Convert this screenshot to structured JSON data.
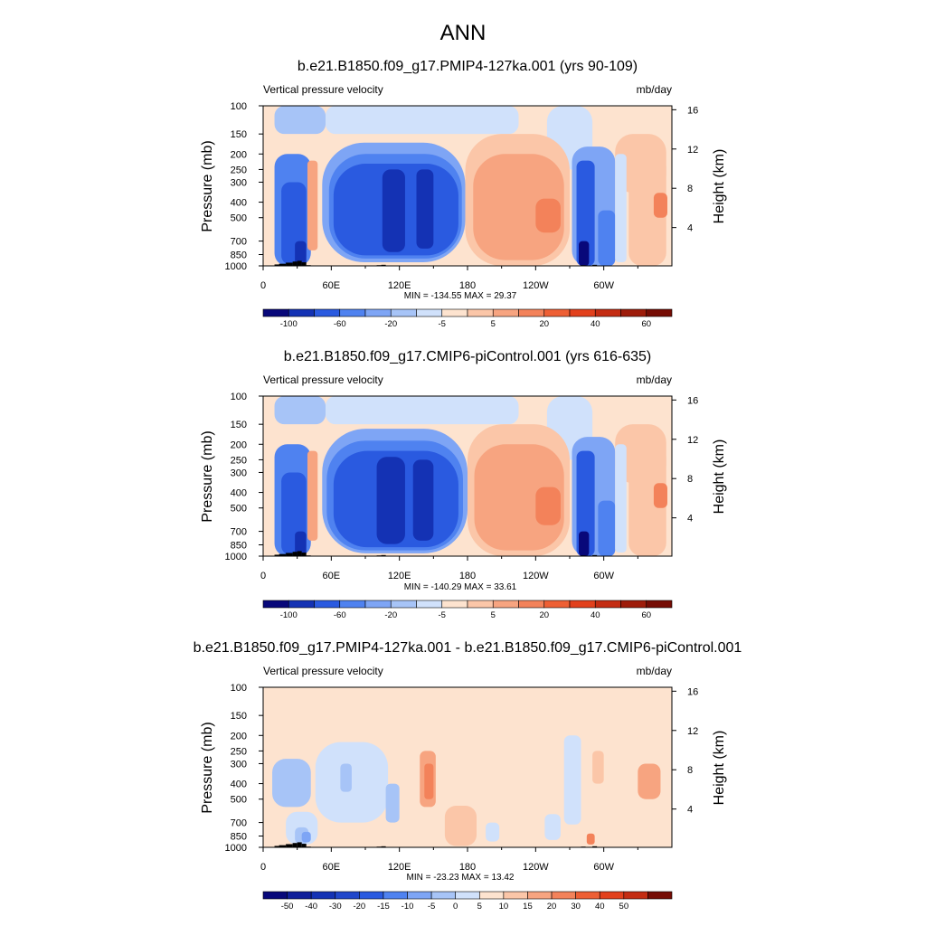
{
  "title": "ANN",
  "chart_data": [
    {
      "type": "heatmap",
      "title": "b.e21.B1850.f09_g17.PMIP4-127ka.001 (yrs 90-109)",
      "left_string": "Vertical pressure velocity",
      "right_string": "mb/day",
      "ylabel": "Pressure (mb)",
      "ylabel_right": "Height (km)",
      "x_ticks": [
        "0",
        "60E",
        "120E",
        "180",
        "120W",
        "60W"
      ],
      "y_ticks": [
        "100",
        "150",
        "200",
        "250",
        "300",
        "400",
        "500",
        "700",
        "850",
        "1000"
      ],
      "y_ticks_right": [
        "4",
        "8",
        "12",
        "16"
      ],
      "xlim": [
        0,
        360
      ],
      "ylim": [
        1000,
        100
      ],
      "stats": "MIN = -134.55  MAX =  29.37",
      "colorbar_labels": [
        "-100",
        "-60",
        "-20",
        "-5",
        "5",
        "20",
        "40",
        "60"
      ],
      "colorbar_colors": [
        "#08087a",
        "#1432b4",
        "#2a5ae0",
        "#4f82f0",
        "#7ea5f5",
        "#a7c4f7",
        "#d0e1fb",
        "#fde3cf",
        "#fbc6a8",
        "#f7a480",
        "#f3825a",
        "#ee5f34",
        "#e2401c",
        "#c42c12",
        "#9e1c0a",
        "#760c04"
      ],
      "fields": {
        "base": "#fde3cf",
        "features": [
          {
            "lon": [
              10,
              55
            ],
            "p": [
              100,
              150
            ],
            "c": 5
          },
          {
            "lon": [
              55,
              225
            ],
            "p": [
              100,
              150
            ],
            "c": 6
          },
          {
            "lon": [
              225,
              250
            ],
            "p": [
              100,
              200
            ],
            "c": 7
          },
          {
            "lon": [
              250,
              290
            ],
            "p": [
              100,
              250
            ],
            "c": 6
          },
          {
            "lon": [
              310,
              355
            ],
            "p": [
              150,
              350
            ],
            "c": 8
          },
          {
            "lon": [
              10,
              42
            ],
            "p": [
              200,
              1000
            ],
            "c": 3
          },
          {
            "lon": [
              16,
              38
            ],
            "p": [
              300,
              980
            ],
            "c": 2
          },
          {
            "lon": [
              28,
              38
            ],
            "p": [
              700,
              1000
            ],
            "c": 1
          },
          {
            "lon": [
              39,
              48
            ],
            "p": [
              220,
              800
            ],
            "c": 9
          },
          {
            "lon": [
              52,
              178
            ],
            "p": [
              170,
              950
            ],
            "c": 4
          },
          {
            "lon": [
              58,
              175
            ],
            "p": [
              200,
              900
            ],
            "c": 3
          },
          {
            "lon": [
              62,
              172
            ],
            "p": [
              230,
              860
            ],
            "c": 2
          },
          {
            "lon": [
              105,
              125
            ],
            "p": [
              250,
              820
            ],
            "c": 1
          },
          {
            "lon": [
              135,
              150
            ],
            "p": [
              250,
              780
            ],
            "c": 1
          },
          {
            "lon": [
              178,
              270
            ],
            "p": [
              150,
              1000
            ],
            "c": 8
          },
          {
            "lon": [
              185,
              265
            ],
            "p": [
              200,
              920
            ],
            "c": 9
          },
          {
            "lon": [
              240,
              262
            ],
            "p": [
              380,
              620
            ],
            "c": 10
          },
          {
            "lon": [
              272,
              310
            ],
            "p": [
              180,
              1000
            ],
            "c": 4
          },
          {
            "lon": [
              276,
              292
            ],
            "p": [
              220,
              1000
            ],
            "c": 2
          },
          {
            "lon": [
              278,
              287
            ],
            "p": [
              700,
              1000
            ],
            "c": 0
          },
          {
            "lon": [
              295,
              310
            ],
            "p": [
              450,
              1000
            ],
            "c": 3
          },
          {
            "lon": [
              310,
              320
            ],
            "p": [
              200,
              950
            ],
            "c": 6
          },
          {
            "lon": [
              322,
              355
            ],
            "p": [
              200,
              1000
            ],
            "c": 8
          },
          {
            "lon": [
              344,
              356
            ],
            "p": [
              350,
              500
            ],
            "c": 10
          }
        ],
        "topo": [
          [
            10,
            980
          ],
          [
            14,
            970
          ],
          [
            20,
            955
          ],
          [
            26,
            940
          ],
          [
            30,
            930
          ],
          [
            34,
            950
          ],
          [
            38,
            990
          ],
          [
            100,
            990
          ],
          [
            104,
            985
          ],
          [
            280,
            990
          ],
          [
            290,
            985
          ],
          [
            300,
            995
          ]
        ]
      }
    },
    {
      "type": "heatmap",
      "title": "b.e21.B1850.f09_g17.CMIP6-piControl.001 (yrs 616-635)",
      "left_string": "Vertical pressure velocity",
      "right_string": "mb/day",
      "ylabel": "Pressure (mb)",
      "ylabel_right": "Height (km)",
      "x_ticks": [
        "0",
        "60E",
        "120E",
        "180",
        "120W",
        "60W"
      ],
      "y_ticks": [
        "100",
        "150",
        "200",
        "250",
        "300",
        "400",
        "500",
        "700",
        "850",
        "1000"
      ],
      "y_ticks_right": [
        "4",
        "8",
        "12",
        "16"
      ],
      "xlim": [
        0,
        360
      ],
      "ylim": [
        1000,
        100
      ],
      "stats": "MIN = -140.29  MAX =  33.61",
      "colorbar_labels": [
        "-100",
        "-60",
        "-20",
        "-5",
        "5",
        "20",
        "40",
        "60"
      ],
      "colorbar_colors": [
        "#08087a",
        "#1432b4",
        "#2a5ae0",
        "#4f82f0",
        "#7ea5f5",
        "#a7c4f7",
        "#d0e1fb",
        "#fde3cf",
        "#fbc6a8",
        "#f7a480",
        "#f3825a",
        "#ee5f34",
        "#e2401c",
        "#c42c12",
        "#9e1c0a",
        "#760c04"
      ],
      "fields": {
        "base": "#fde3cf",
        "features": [
          {
            "lon": [
              10,
              55
            ],
            "p": [
              100,
              150
            ],
            "c": 5
          },
          {
            "lon": [
              55,
              225
            ],
            "p": [
              100,
              150
            ],
            "c": 6
          },
          {
            "lon": [
              225,
              250
            ],
            "p": [
              100,
              200
            ],
            "c": 7
          },
          {
            "lon": [
              250,
              290
            ],
            "p": [
              100,
              250
            ],
            "c": 6
          },
          {
            "lon": [
              310,
              355
            ],
            "p": [
              150,
              350
            ],
            "c": 8
          },
          {
            "lon": [
              10,
              42
            ],
            "p": [
              200,
              1000
            ],
            "c": 3
          },
          {
            "lon": [
              16,
              38
            ],
            "p": [
              300,
              980
            ],
            "c": 2
          },
          {
            "lon": [
              28,
              38
            ],
            "p": [
              700,
              1000
            ],
            "c": 1
          },
          {
            "lon": [
              39,
              48
            ],
            "p": [
              220,
              800
            ],
            "c": 9
          },
          {
            "lon": [
              52,
              180
            ],
            "p": [
              160,
              960
            ],
            "c": 4
          },
          {
            "lon": [
              56,
              176
            ],
            "p": [
              190,
              920
            ],
            "c": 3
          },
          {
            "lon": [
              62,
              172
            ],
            "p": [
              220,
              880
            ],
            "c": 2
          },
          {
            "lon": [
              100,
              125
            ],
            "p": [
              240,
              840
            ],
            "c": 1
          },
          {
            "lon": [
              132,
              150
            ],
            "p": [
              250,
              800
            ],
            "c": 1
          },
          {
            "lon": [
              180,
              270
            ],
            "p": [
              150,
              1000
            ],
            "c": 8
          },
          {
            "lon": [
              186,
              265
            ],
            "p": [
              200,
              920
            ],
            "c": 9
          },
          {
            "lon": [
              240,
              262
            ],
            "p": [
              370,
              640
            ],
            "c": 10
          },
          {
            "lon": [
              272,
              310
            ],
            "p": [
              180,
              1000
            ],
            "c": 4
          },
          {
            "lon": [
              276,
              292
            ],
            "p": [
              220,
              1000
            ],
            "c": 2
          },
          {
            "lon": [
              278,
              287
            ],
            "p": [
              700,
              1000
            ],
            "c": 0
          },
          {
            "lon": [
              295,
              310
            ],
            "p": [
              450,
              1000
            ],
            "c": 3
          },
          {
            "lon": [
              310,
              320
            ],
            "p": [
              200,
              950
            ],
            "c": 6
          },
          {
            "lon": [
              322,
              355
            ],
            "p": [
              200,
              1000
            ],
            "c": 8
          },
          {
            "lon": [
              344,
              356
            ],
            "p": [
              350,
              500
            ],
            "c": 10
          }
        ],
        "topo": [
          [
            10,
            980
          ],
          [
            14,
            970
          ],
          [
            20,
            955
          ],
          [
            26,
            940
          ],
          [
            30,
            930
          ],
          [
            34,
            950
          ],
          [
            38,
            990
          ],
          [
            100,
            990
          ],
          [
            104,
            985
          ],
          [
            280,
            990
          ],
          [
            290,
            985
          ],
          [
            300,
            995
          ]
        ]
      }
    },
    {
      "type": "heatmap",
      "title": "b.e21.B1850.f09_g17.PMIP4-127ka.001 - b.e21.B1850.f09_g17.CMIP6-piControl.001",
      "left_string": "Vertical pressure velocity",
      "right_string": "mb/day",
      "ylabel": "Pressure (mb)",
      "ylabel_right": "Height (km)",
      "x_ticks": [
        "0",
        "60E",
        "120E",
        "180",
        "120W",
        "60W"
      ],
      "y_ticks": [
        "100",
        "150",
        "200",
        "250",
        "300",
        "400",
        "500",
        "700",
        "850",
        "1000"
      ],
      "y_ticks_right": [
        "4",
        "8",
        "12",
        "16"
      ],
      "xlim": [
        0,
        360
      ],
      "ylim": [
        1000,
        100
      ],
      "stats": "MIN = -23.23  MAX =  13.42",
      "colorbar_labels": [
        "-50",
        "-40",
        "-30",
        "-20",
        "-15",
        "-10",
        "-5",
        "0",
        "5",
        "10",
        "15",
        "20",
        "30",
        "40",
        "50"
      ],
      "colorbar_colors": [
        "#08087a",
        "#0f1e9a",
        "#1432b4",
        "#2046ca",
        "#2a5ae0",
        "#4f82f0",
        "#7ea5f5",
        "#a7c4f7",
        "#d0e1fb",
        "#fde3cf",
        "#fbc6a8",
        "#f7a480",
        "#f3825a",
        "#ee5f34",
        "#e2401c",
        "#c42c12",
        "#760c04"
      ],
      "fields": {
        "base": "#fde3cf",
        "features": [
          {
            "lon": [
              8,
              42
            ],
            "p": [
              280,
              560
            ],
            "c": 7
          },
          {
            "lon": [
              20,
              48
            ],
            "p": [
              600,
              960
            ],
            "c": 8
          },
          {
            "lon": [
              28,
              40
            ],
            "p": [
              750,
              950
            ],
            "c": 7
          },
          {
            "lon": [
              34,
              42
            ],
            "p": [
              800,
              930
            ],
            "c": 6
          },
          {
            "lon": [
              46,
              110
            ],
            "p": [
              220,
              700
            ],
            "c": 8
          },
          {
            "lon": [
              68,
              78
            ],
            "p": [
              300,
              450
            ],
            "c": 7
          },
          {
            "lon": [
              108,
              120
            ],
            "p": [
              400,
              700
            ],
            "c": 7
          },
          {
            "lon": [
              138,
              152
            ],
            "p": [
              250,
              560
            ],
            "c": 11
          },
          {
            "lon": [
              142,
              150
            ],
            "p": [
              300,
              500
            ],
            "c": 12
          },
          {
            "lon": [
              160,
              188
            ],
            "p": [
              550,
              980
            ],
            "c": 10
          },
          {
            "lon": [
              196,
              208
            ],
            "p": [
              700,
              920
            ],
            "c": 8
          },
          {
            "lon": [
              248,
              262
            ],
            "p": [
              620,
              900
            ],
            "c": 8
          },
          {
            "lon": [
              265,
              280
            ],
            "p": [
              200,
              720
            ],
            "c": 8
          },
          {
            "lon": [
              290,
              300
            ],
            "p": [
              250,
              400
            ],
            "c": 10
          },
          {
            "lon": [
              330,
              350
            ],
            "p": [
              300,
              500
            ],
            "c": 11
          },
          {
            "lon": [
              285,
              292
            ],
            "p": [
              820,
              960
            ],
            "c": 12
          }
        ],
        "topo": [
          [
            10,
            980
          ],
          [
            14,
            970
          ],
          [
            20,
            955
          ],
          [
            26,
            940
          ],
          [
            30,
            930
          ],
          [
            34,
            950
          ],
          [
            38,
            990
          ],
          [
            100,
            990
          ],
          [
            104,
            985
          ],
          [
            280,
            990
          ],
          [
            290,
            985
          ],
          [
            300,
            995
          ]
        ]
      }
    }
  ]
}
